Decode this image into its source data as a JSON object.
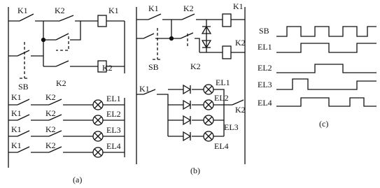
{
  "panel_a": {
    "labels": [
      "K1",
      "K2",
      "K1",
      "SB",
      "K2",
      "K2",
      "K1",
      "K2",
      "EL1",
      "K1",
      "K2",
      "EL2",
      "K1",
      "K2",
      "EL3",
      "K1",
      "K2",
      "EL4"
    ],
    "caption": "(a)"
  },
  "panel_b": {
    "labels": [
      "K1",
      "K2",
      "K1",
      "SB",
      "K2",
      "K2",
      "K1",
      "EL1",
      "EL2",
      "K2",
      "EL3",
      "EL4"
    ],
    "caption": "(b)"
  },
  "panel_c": {
    "labels": [
      "SB",
      "EL1",
      "EL2",
      "EL3",
      "EL4"
    ],
    "caption": "(c)"
  }
}
